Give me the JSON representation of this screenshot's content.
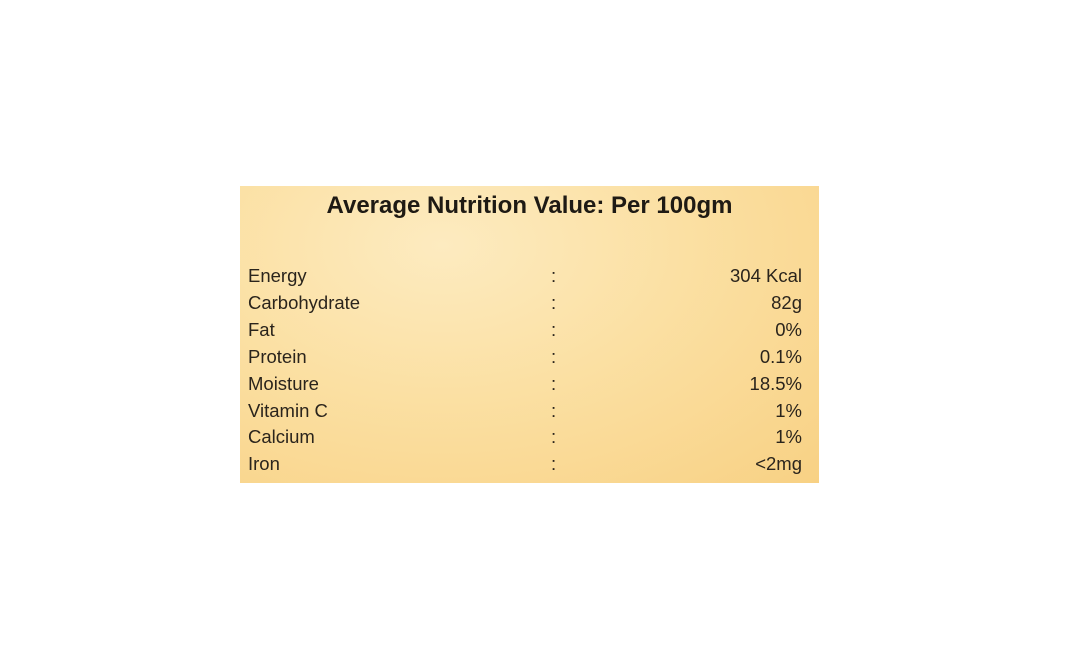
{
  "title": "Average Nutrition Value: Per 100gm",
  "table": {
    "rows": [
      [
        "Energy",
        ":",
        "304 Kcal"
      ],
      [
        "Carbohydrate",
        ":",
        "82g"
      ],
      [
        "Fat",
        ":",
        "0%"
      ],
      [
        "Protein",
        ":",
        "0.1%"
      ],
      [
        "Moisture",
        ":",
        "18.5%"
      ],
      [
        "Vitamin C",
        ":",
        "1%"
      ],
      [
        "Calcium",
        ":",
        "1%"
      ],
      [
        "Iron",
        ":",
        "<2mg"
      ]
    ]
  }
}
